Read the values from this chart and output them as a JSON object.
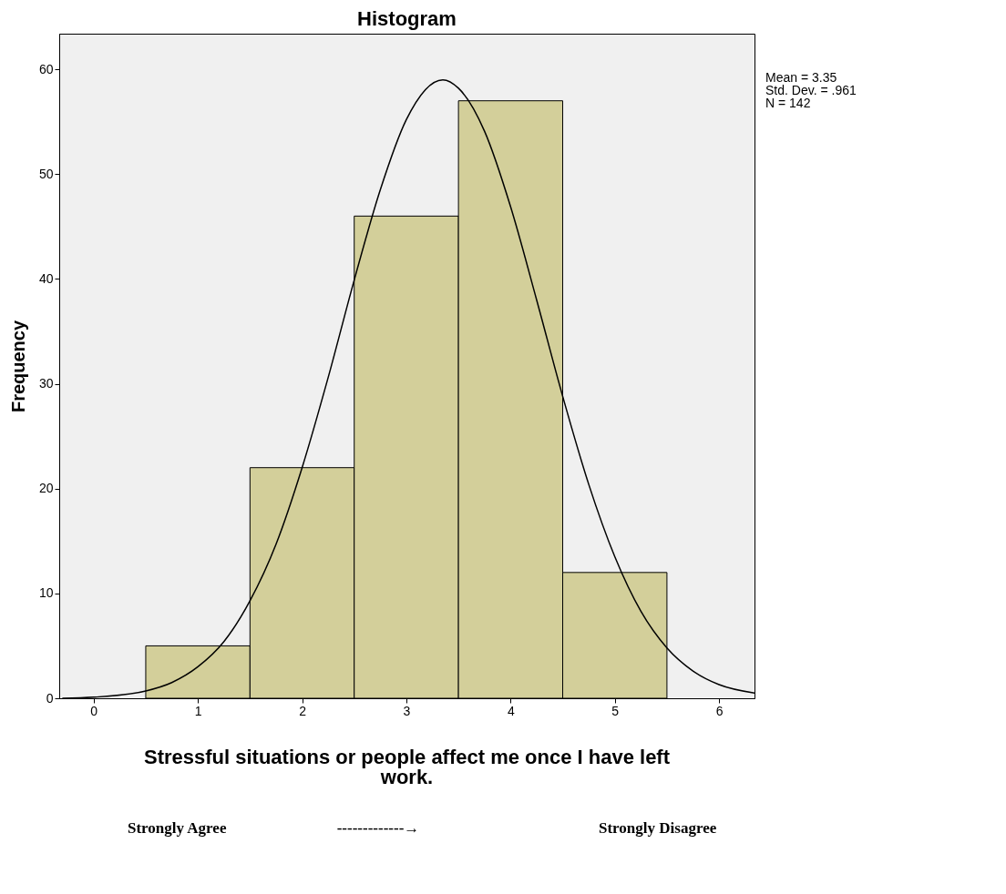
{
  "chart_data": {
    "type": "histogram",
    "title": "Histogram",
    "xlabel": "Stressful situations or people affect me once I have left work.",
    "ylabel": "Frequency",
    "bins": [
      0.5,
      1.5,
      2.5,
      3.5,
      4.5,
      5.5
    ],
    "values": [
      5,
      22,
      46,
      57,
      12
    ],
    "color": "#d3cf9a",
    "series": [
      {
        "type": "line",
        "color": "#000000",
        "x": [
          -0.3,
          0,
          0.5,
          0.75,
          1,
          1.25,
          1.5,
          1.75,
          2,
          2.25,
          2.5,
          2.75,
          3,
          3.35,
          3.5,
          3.75,
          4,
          4.25,
          4.5,
          4.75,
          5,
          5.25,
          5.5,
          5.75,
          6,
          6.34
        ],
        "values": [
          0,
          0.1,
          0.7,
          1.5,
          3,
          5.4,
          9.3,
          14.7,
          22,
          30.6,
          39.9,
          48.5,
          55.2,
          59,
          58.2,
          54.1,
          46.9,
          38,
          28.8,
          20.4,
          13.5,
          8.3,
          4.8,
          2.6,
          1.3,
          0.5
        ]
      }
    ],
    "xlim": [
      -0.33,
      6.34
    ],
    "xticks": [
      0,
      1,
      2,
      3,
      4,
      5,
      6
    ],
    "ylim": [
      0,
      63.4
    ],
    "yticks": [
      0,
      10,
      20,
      30,
      40,
      50,
      60
    ],
    "grid": false,
    "annotations": [
      "Mean = 3.35",
      "Std. Dev. = .961",
      "N = 142",
      "Strongly  Agree",
      "-------------→",
      "Strongly Disagree"
    ]
  }
}
